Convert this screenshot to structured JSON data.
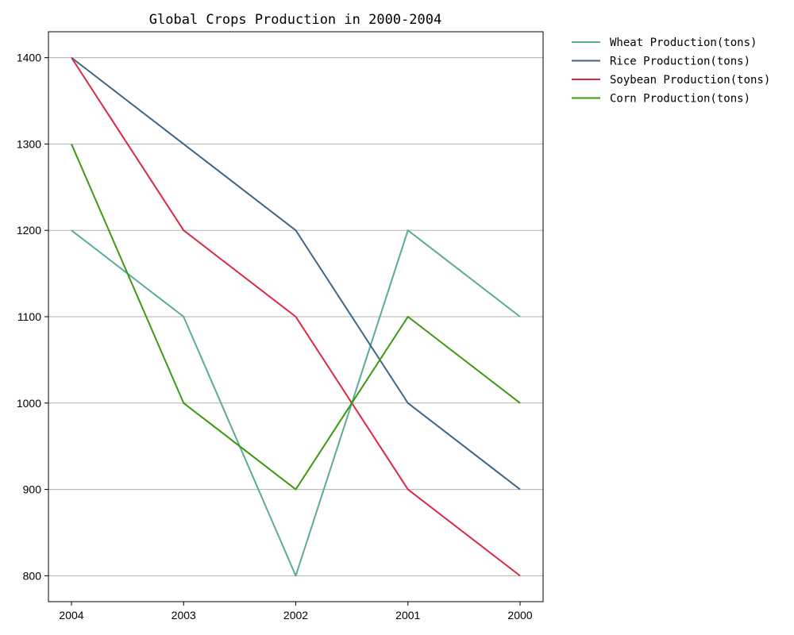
{
  "chart_data": {
    "type": "line",
    "title": "Global Crops Production in 2000-2004",
    "xlabel": "",
    "ylabel": "",
    "categories": [
      "2004",
      "2003",
      "2002",
      "2001",
      "2000"
    ],
    "yticks": [
      800,
      900,
      1000,
      1100,
      1200,
      1300,
      1400
    ],
    "ylim": [
      770,
      1430
    ],
    "grid": "horizontal",
    "legend_position": "outside-top-right",
    "series": [
      {
        "name": "Wheat Production(tons)",
        "color": "#5aab98",
        "values": [
          1200,
          1100,
          800,
          1200,
          1100
        ]
      },
      {
        "name": "Rice Production(tons)",
        "color": "#3f6684",
        "values": [
          1400,
          1300,
          1200,
          1000,
          900
        ]
      },
      {
        "name": "Soybean Production(tons)",
        "color": "#dc2845",
        "values": [
          1400,
          1200,
          1100,
          900,
          800
        ]
      },
      {
        "name": "Corn Production(tons)",
        "color": "#3b9a10",
        "values": [
          1300,
          1000,
          900,
          1100,
          1000
        ]
      }
    ]
  }
}
